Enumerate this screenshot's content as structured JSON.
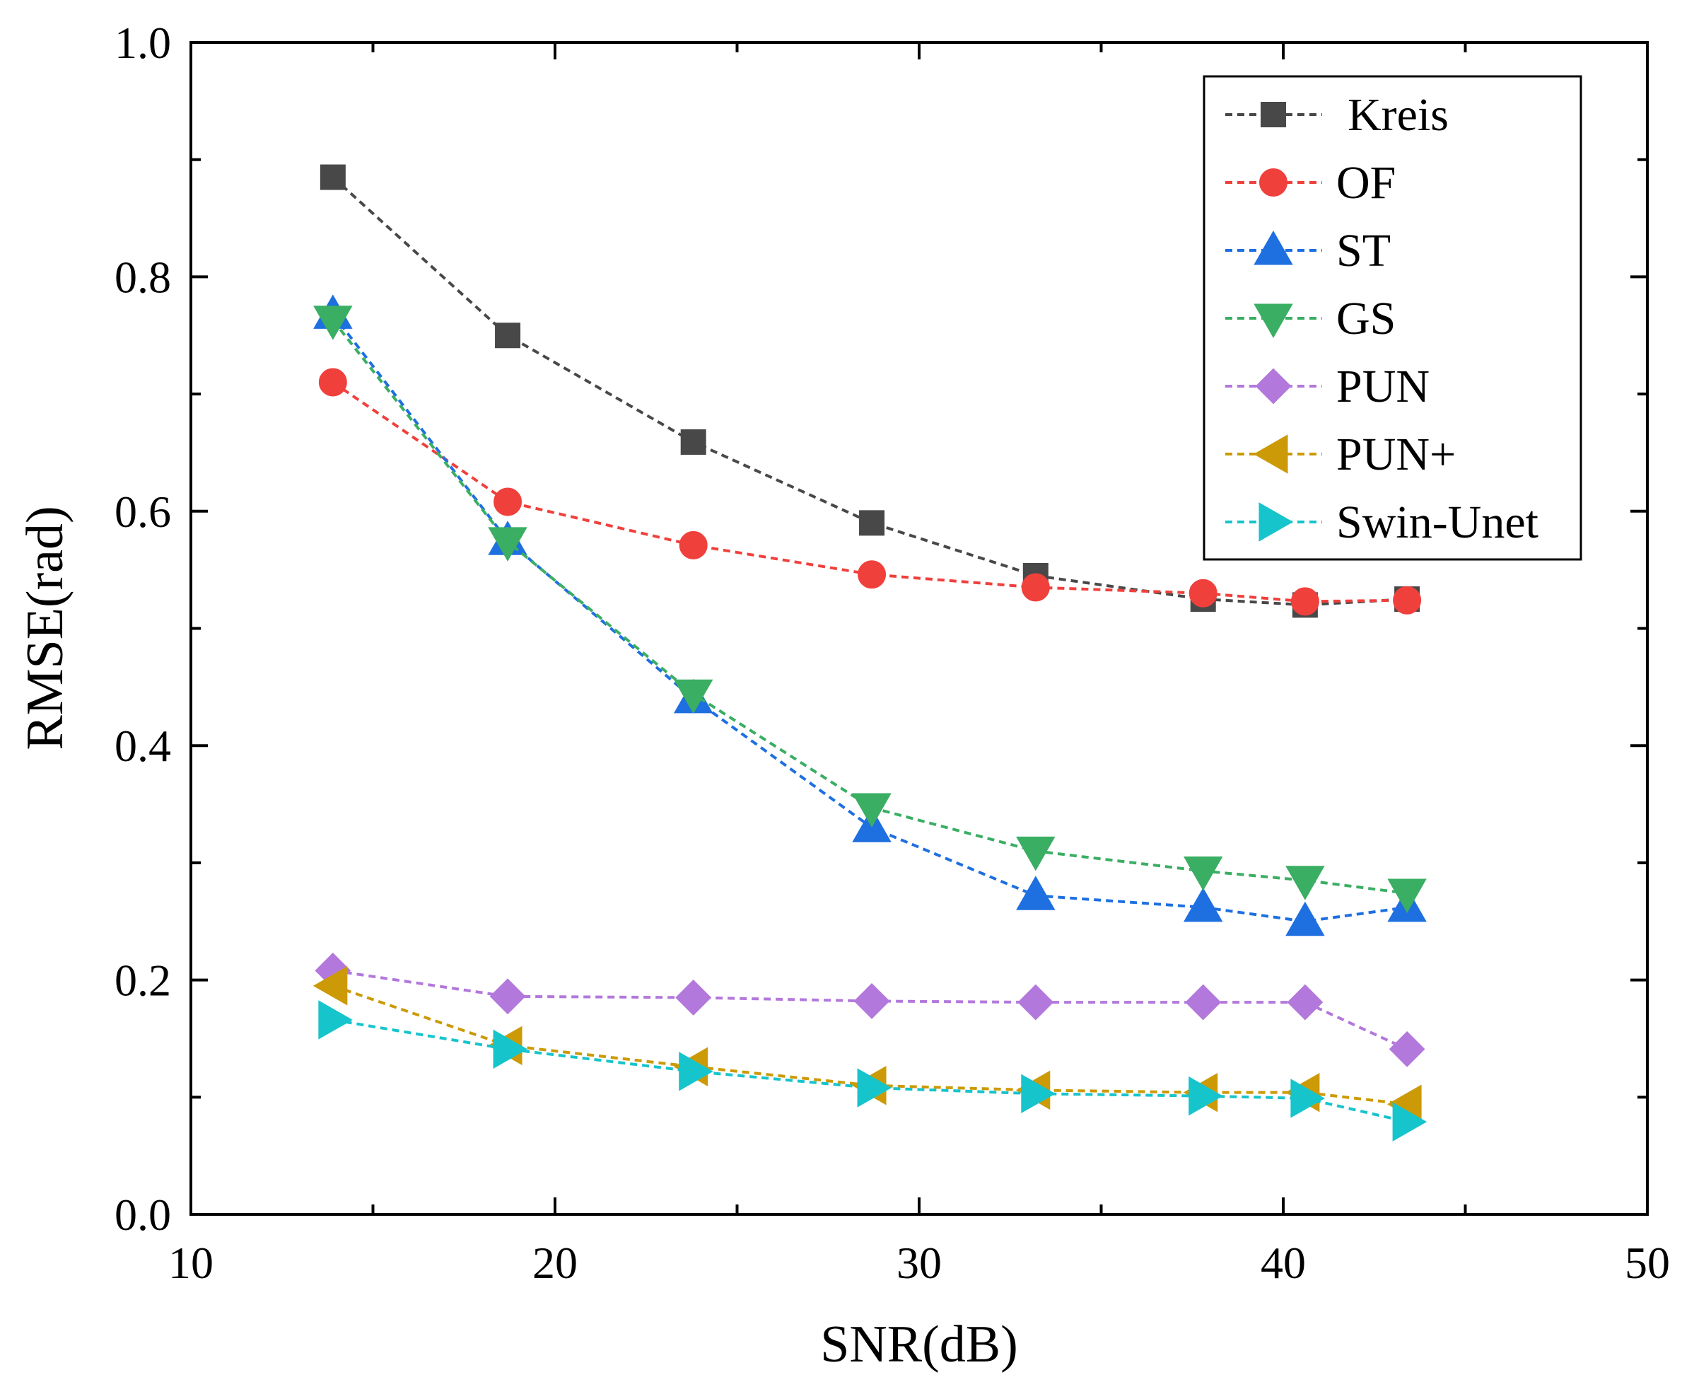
{
  "chart_data": {
    "type": "line",
    "xlabel": "SNR(dB)",
    "ylabel": "RMSE(rad)",
    "xlim": [
      10,
      50
    ],
    "ylim": [
      0.0,
      1.0
    ],
    "x_ticks": [
      10,
      20,
      30,
      40,
      50
    ],
    "x_tick_labels": [
      "10",
      "20",
      "30",
      "40",
      "50"
    ],
    "y_ticks": [
      0.0,
      0.2,
      0.4,
      0.6,
      0.8,
      1.0
    ],
    "y_tick_labels": [
      "0.0",
      "0.2",
      "0.4",
      "0.6",
      "0.8",
      "1.0"
    ],
    "grid": false,
    "legend_position": "top-right",
    "line_style": "dashed",
    "x": [
      13.9,
      18.7,
      23.8,
      28.7,
      33.2,
      37.8,
      40.6,
      43.4
    ],
    "series": [
      {
        "name": "Kreis",
        "marker": "square",
        "color": "#484848",
        "values": [
          0.885,
          0.75,
          0.659,
          0.59,
          0.545,
          0.525,
          0.52,
          0.525
        ]
      },
      {
        "name": "OF",
        "marker": "circle",
        "color": "#f0403c",
        "values": [
          0.71,
          0.608,
          0.571,
          0.546,
          0.535,
          0.53,
          0.523,
          0.524
        ]
      },
      {
        "name": "ST",
        "marker": "triangle-up",
        "color": "#1e6fe0",
        "values": [
          0.768,
          0.575,
          0.44,
          0.33,
          0.272,
          0.262,
          0.25,
          0.262
        ]
      },
      {
        "name": "GS",
        "marker": "triangle-down",
        "color": "#3aae63",
        "values": [
          0.763,
          0.574,
          0.444,
          0.347,
          0.31,
          0.293,
          0.285,
          0.274
        ]
      },
      {
        "name": "PUN",
        "marker": "diamond",
        "color": "#b278dc",
        "values": [
          0.208,
          0.186,
          0.185,
          0.182,
          0.181,
          0.181,
          0.181,
          0.141
        ]
      },
      {
        "name": "PUN+",
        "marker": "triangle-left",
        "color": "#cc9a06",
        "values": [
          0.195,
          0.144,
          0.126,
          0.11,
          0.106,
          0.104,
          0.104,
          0.094
        ]
      },
      {
        "name": "Swin-Unet",
        "marker": "triangle-right",
        "color": "#16c4cc",
        "values": [
          0.166,
          0.141,
          0.122,
          0.108,
          0.103,
          0.101,
          0.099,
          0.079
        ]
      }
    ]
  }
}
